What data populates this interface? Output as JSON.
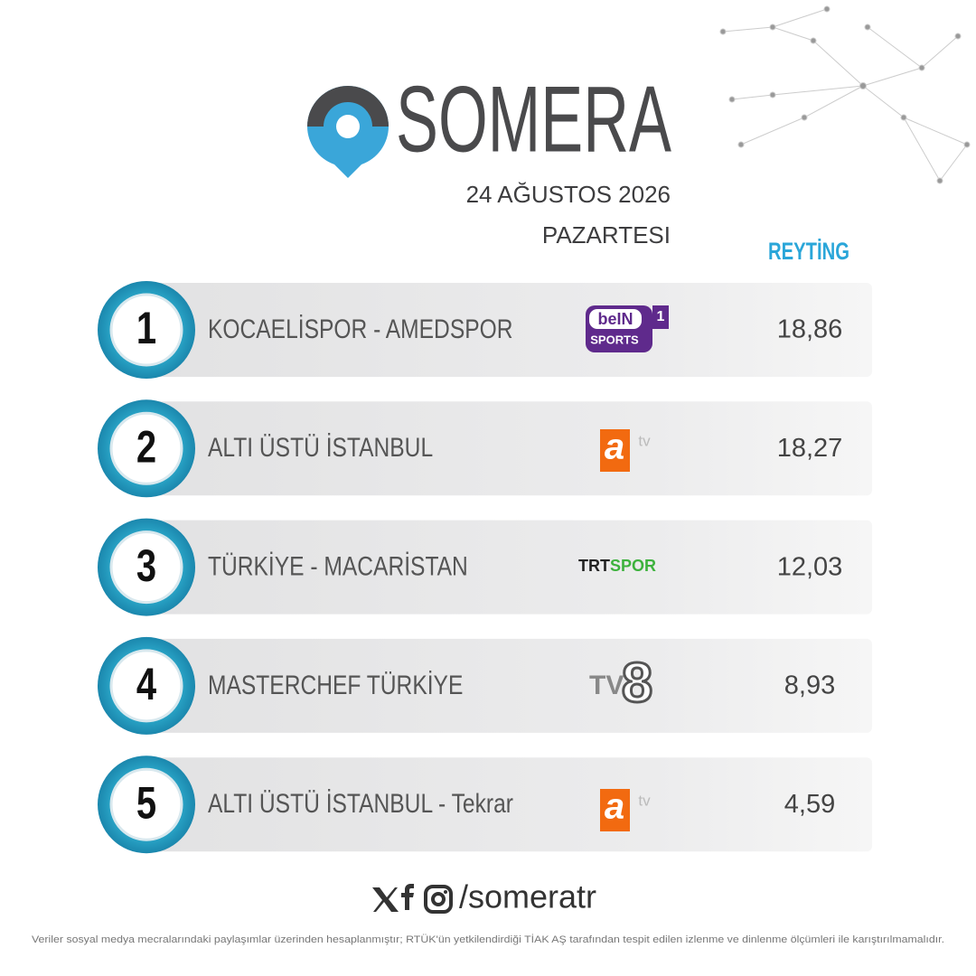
{
  "brand": "SOMERA",
  "date": "24 AĞUSTOS 2026",
  "day": "PAZARTESI",
  "column_header": "REYTİNG",
  "rows": [
    {
      "rank": "1",
      "program": "KOCAELİSPOR - AMEDSPOR",
      "channel": [
        "beIN",
        "SPORTS",
        "1"
      ],
      "rating": "18,86"
    },
    {
      "rank": "2",
      "program": "ALTI ÜSTÜ İSTANBUL",
      "channel": [
        "a",
        "tv"
      ],
      "rating": "18,27"
    },
    {
      "rank": "3",
      "program": "TÜRKİYE - MACARİSTAN",
      "channel": [
        "TRT",
        "SPOR"
      ],
      "rating": "12,03"
    },
    {
      "rank": "4",
      "program": "MASTERCHEF TÜRKİYE",
      "channel": [
        "TV",
        "8"
      ],
      "rating": "8,93"
    },
    {
      "rank": "5",
      "program": "ALTI ÜSTÜ İSTANBUL - Tekrar",
      "channel": [
        "a",
        "tv"
      ],
      "rating": "4,59"
    }
  ],
  "footer": {
    "handle": "/someratr",
    "disclaimer": "Veriler sosyal medya mecralarındaki paylaşımlar üzerinden hesaplanmıştır; RTÜK'ün yetkilendirdiği TİAK AŞ tarafından tespit edilen izlenme ve dinlenme ölçümleri ile karıştırılmamalıdır."
  }
}
